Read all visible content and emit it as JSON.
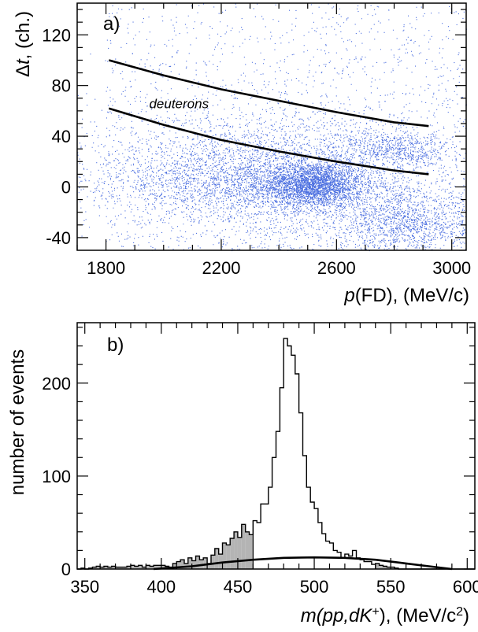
{
  "chart_data": [
    {
      "type": "scatter",
      "panel_label": "a)",
      "xlabel_prefix": "p",
      "xlabel_rest": "(FD), (MeV/c)",
      "ylabel_prefix": "Δ",
      "ylabel_var": "t",
      "ylabel_rest": ", (ch.)",
      "xlim": [
        1700,
        3050
      ],
      "ylim": [
        -50,
        145
      ],
      "xticks": [
        "1800",
        "2200",
        "2600",
        "3000"
      ],
      "xtick_values": [
        1800,
        2200,
        2600,
        3000
      ],
      "yticks": [
        "-40",
        "0",
        "40",
        "80",
        "120"
      ],
      "ytick_values": [
        -40,
        0,
        40,
        80,
        120
      ],
      "point_color": "#4a6ee0",
      "annotation": "deuterons",
      "annotation_pos": [
        1950,
        62
      ],
      "cut_curves": [
        {
          "x": [
            1810,
            2000,
            2200,
            2400,
            2600,
            2800,
            2920
          ],
          "y": [
            100,
            88,
            77,
            68,
            59,
            51,
            48
          ]
        },
        {
          "x": [
            1810,
            2000,
            2200,
            2400,
            2600,
            2800,
            2920
          ],
          "y": [
            62,
            49,
            37,
            28,
            20,
            13,
            10
          ]
        }
      ],
      "clusters": [
        {
          "cx": 2520,
          "cy": 2,
          "sx": 85,
          "sy": 9,
          "n": 2600
        },
        {
          "cx": 2360,
          "cy": 3,
          "sx": 260,
          "sy": 14,
          "n": 2200
        },
        {
          "cx": 2200,
          "cy": 8,
          "sx": 330,
          "sy": 18,
          "n": 1200
        },
        {
          "cx": 2820,
          "cy": 29,
          "sx": 90,
          "sy": 7,
          "n": 550
        },
        {
          "cx": 2500,
          "cy": 38,
          "sx": 300,
          "sy": 11,
          "n": 650
        },
        {
          "cx": 2850,
          "cy": -28,
          "sx": 130,
          "sy": 14,
          "n": 1300
        },
        {
          "cx": 2600,
          "cy": -35,
          "sx": 350,
          "sy": 12,
          "n": 500
        },
        {
          "cx": 2350,
          "cy": 48,
          "sx": 400,
          "sy": 30,
          "n": 500
        }
      ],
      "uniform_points": 1400
    },
    {
      "type": "histogram",
      "panel_label": "b)",
      "xlabel_prefix": "m",
      "xlabel_var": "(pp,dK",
      "xlabel_sup": "+",
      "xlabel_rest": "), (MeV/c",
      "xlabel_sup2": "2",
      "xlabel_close": ")",
      "ylabel": "number of events",
      "xlim": [
        345,
        605
      ],
      "ylim": [
        0,
        265
      ],
      "xticks": [
        "350",
        "400",
        "450",
        "500",
        "550",
        "600"
      ],
      "xtick_values": [
        350,
        400,
        450,
        500,
        550,
        600
      ],
      "yticks": [
        "0",
        "100",
        "200"
      ],
      "ytick_values": [
        0,
        100,
        200
      ],
      "bin_start": 345,
      "bin_width": 2.5,
      "counts": [
        0,
        1,
        0,
        1,
        2,
        3,
        2,
        3,
        2,
        3,
        2,
        2,
        2,
        3,
        4,
        3,
        4,
        2,
        4,
        3,
        4,
        4,
        4,
        3,
        2,
        6,
        8,
        10,
        6,
        12,
        9,
        14,
        10,
        12,
        6,
        15,
        22,
        16,
        28,
        26,
        33,
        40,
        34,
        48,
        40,
        37,
        52,
        50,
        70,
        70,
        88,
        120,
        148,
        195,
        248,
        240,
        230,
        210,
        168,
        122,
        88,
        72,
        65,
        50,
        38,
        30,
        28,
        20,
        18,
        12,
        16,
        14,
        20,
        12,
        10,
        8,
        8,
        5,
        6,
        4,
        3,
        2,
        2,
        1,
        0,
        0,
        0,
        0,
        0,
        0,
        0,
        0,
        0,
        0,
        0,
        0,
        0,
        0,
        0,
        0,
        0,
        0,
        0,
        0
      ],
      "shaded_ranges": [
        [
          345,
          460
        ],
        [
          540,
          600
        ]
      ],
      "shaded_color": "#b4b4b4",
      "fit_curve": {
        "x": [
          395,
          420,
          440,
          460,
          480,
          500,
          520,
          540,
          560,
          575,
          590
        ],
        "y": [
          0,
          3,
          7,
          10,
          12,
          12.5,
          12,
          10,
          6,
          3,
          0
        ]
      }
    }
  ]
}
